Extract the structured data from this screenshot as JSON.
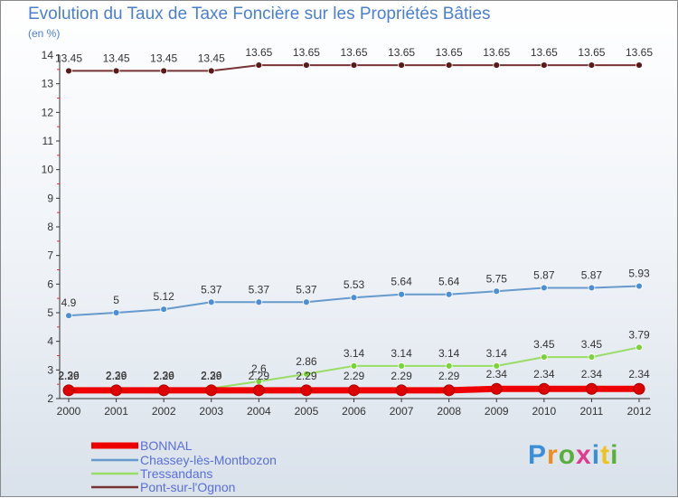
{
  "chart_data": {
    "type": "line",
    "title": "Evolution du Taux de Taxe Foncière sur les Propriétés Bâties",
    "subtitle": "(en %)",
    "categories": [
      "2000",
      "2001",
      "2002",
      "2003",
      "2004",
      "2005",
      "2006",
      "2007",
      "2008",
      "2009",
      "2010",
      "2011",
      "2012"
    ],
    "ylim": [
      2,
      14
    ],
    "yticks": [
      2,
      3,
      4,
      5,
      6,
      7,
      8,
      9,
      10,
      11,
      12,
      13,
      14
    ],
    "grid": false,
    "legend_position": "bottom-left",
    "series": [
      {
        "name": "BONNAL",
        "color": "#ee0000",
        "values": [
          2.29,
          2.29,
          2.29,
          2.29,
          2.29,
          2.29,
          2.29,
          2.29,
          2.29,
          2.34,
          2.34,
          2.34,
          2.34
        ],
        "labels": [
          "2.29",
          "2.29",
          "2.29",
          "2.29",
          "2.29",
          "2.29",
          "2.29",
          "2.29",
          "2.29",
          "2.34",
          "2.34",
          "2.34",
          "2.34"
        ]
      },
      {
        "name": "Chassey-lès-Montbozon",
        "color": "#6699cc",
        "values": [
          4.9,
          5,
          5.12,
          5.37,
          5.37,
          5.37,
          5.53,
          5.64,
          5.64,
          5.75,
          5.87,
          5.87,
          5.93
        ],
        "labels": [
          "4.9",
          "5",
          "5.12",
          "5.37",
          "5.37",
          "5.37",
          "5.53",
          "5.64",
          "5.64",
          "5.75",
          "5.87",
          "5.87",
          "5.93"
        ]
      },
      {
        "name": "Tressandans",
        "color": "#99dd66",
        "values": [
          2.36,
          2.36,
          2.36,
          2.36,
          2.6,
          2.86,
          3.14,
          3.14,
          3.14,
          3.14,
          3.45,
          3.45,
          3.79
        ],
        "labels": [
          "2.36",
          "2.36",
          "2.36",
          "2.36",
          "2.6",
          "2.86",
          "3.14",
          "3.14",
          "3.14",
          "3.14",
          "3.45",
          "3.45",
          "3.79"
        ]
      },
      {
        "name": "Pont-sur-l'Ognon",
        "color": "#773333",
        "values": [
          13.45,
          13.45,
          13.45,
          13.45,
          13.65,
          13.65,
          13.65,
          13.65,
          13.65,
          13.65,
          13.65,
          13.65,
          13.65
        ],
        "labels": [
          "13.45",
          "13.45",
          "13.45",
          "13.45",
          "13.65",
          "13.65",
          "13.65",
          "13.65",
          "13.65",
          "13.65",
          "13.65",
          "13.65",
          "13.65"
        ]
      }
    ]
  },
  "logo": {
    "letters": [
      "P",
      "r",
      "o",
      "x",
      "i",
      "t",
      "i"
    ],
    "colors": [
      "#3a8fd8",
      "#f08c1e",
      "#5aae3a",
      "#e03a8c",
      "#3a8fd8",
      "#f0c21e",
      "#5aae3a"
    ]
  }
}
